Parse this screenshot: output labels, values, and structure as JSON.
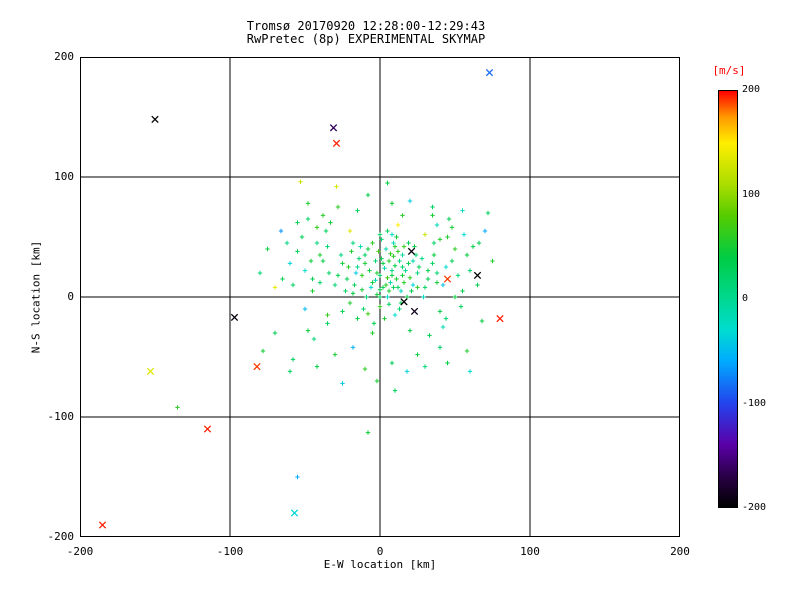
{
  "chart_data": {
    "type": "scatter",
    "title_line1": "Tromsø 20170920 12:28:00-12:29:43",
    "title_line2": "RwPretec (8p) EXPERIMENTAL SKYMAP",
    "xlabel": "E-W location [km]",
    "ylabel": "N-S location [km]",
    "xlim": [
      -200,
      200
    ],
    "ylim": [
      -200,
      200
    ],
    "xticks": [
      -200,
      -100,
      0,
      100,
      200
    ],
    "yticks": [
      -200,
      -100,
      0,
      100,
      200
    ],
    "grid": true,
    "background": "#ffffff",
    "axis_color": "#000000",
    "colorbar": {
      "label": "[m/s]",
      "label_color": "#ff0000",
      "min": -200,
      "max": 200,
      "ticks": [
        200,
        100,
        0,
        -100,
        -200
      ]
    },
    "colormap": [
      {
        "v": -200,
        "c": "#000000"
      },
      {
        "v": -170,
        "c": "#2a0048"
      },
      {
        "v": -140,
        "c": "#5a00a8"
      },
      {
        "v": -100,
        "c": "#2244ee"
      },
      {
        "v": -60,
        "c": "#00aaff"
      },
      {
        "v": -30,
        "c": "#00dcd0"
      },
      {
        "v": 0,
        "c": "#00d890"
      },
      {
        "v": 40,
        "c": "#00cc44"
      },
      {
        "v": 80,
        "c": "#55cc00"
      },
      {
        "v": 110,
        "c": "#aadd00"
      },
      {
        "v": 150,
        "c": "#ffee00"
      },
      {
        "v": 175,
        "c": "#ff9900"
      },
      {
        "v": 200,
        "c": "#ff0000"
      }
    ],
    "points_columns": [
      "x_km",
      "y_km",
      "velocity_mps"
    ],
    "plus_points": [
      [
        2,
        8,
        35
      ],
      [
        -5,
        12,
        48
      ],
      [
        8,
        22,
        10
      ],
      [
        14,
        5,
        -22
      ],
      [
        -12,
        18,
        62
      ],
      [
        6,
        -6,
        28
      ],
      [
        -3,
        30,
        15
      ],
      [
        11,
        15,
        52
      ],
      [
        -18,
        3,
        40
      ],
      [
        4,
        40,
        -15
      ],
      [
        19,
        28,
        33
      ],
      [
        -8,
        -14,
        70
      ],
      [
        0,
        18,
        22
      ],
      [
        9,
        34,
        58
      ],
      [
        -15,
        25,
        5
      ],
      [
        22,
        10,
        -35
      ],
      [
        -2,
        2,
        45
      ],
      [
        13,
        -10,
        18
      ],
      [
        -22,
        15,
        30
      ],
      [
        7,
        12,
        -8
      ],
      [
        16,
        42,
        65
      ],
      [
        -10,
        35,
        25
      ],
      [
        3,
        -18,
        50
      ],
      [
        25,
        20,
        12
      ],
      [
        -6,
        8,
        -28
      ],
      [
        10,
        26,
        38
      ],
      [
        -20,
        -5,
        55
      ],
      [
        1,
        48,
        20
      ],
      [
        18,
        0,
        42
      ],
      [
        -13,
        42,
        -12
      ],
      [
        5,
        16,
        68
      ],
      [
        28,
        32,
        8
      ],
      [
        -4,
        -22,
        35
      ],
      [
        12,
        8,
        26
      ],
      [
        -25,
        28,
        48
      ],
      [
        8,
        52,
        -20
      ],
      [
        20,
        16,
        60
      ],
      [
        -9,
        0,
        15
      ],
      [
        2,
        28,
        44
      ],
      [
        15,
        35,
        -5
      ],
      [
        -17,
        10,
        32
      ],
      [
        6,
        5,
        52
      ],
      [
        30,
        8,
        24
      ],
      [
        -1,
        38,
        70
      ],
      [
        10,
        -15,
        -30
      ],
      [
        23,
        42,
        40
      ],
      [
        -14,
        32,
        18
      ],
      [
        4,
        10,
        58
      ],
      [
        17,
        22,
        5
      ],
      [
        -28,
        18,
        36
      ],
      [
        9,
        45,
        -18
      ],
      [
        0,
        -8,
        62
      ],
      [
        26,
        25,
        28
      ],
      [
        -7,
        22,
        45
      ],
      [
        13,
        30,
        12
      ],
      [
        -19,
        38,
        55
      ],
      [
        5,
        0,
        -25
      ],
      [
        21,
        5,
        38
      ],
      [
        -11,
        -10,
        20
      ],
      [
        7,
        36,
        65
      ],
      [
        32,
        15,
        30
      ],
      [
        -3,
        14,
        -10
      ],
      [
        11,
        50,
        48
      ],
      [
        -23,
        5,
        25
      ],
      [
        16,
        12,
        56
      ],
      [
        1,
        32,
        35
      ],
      [
        -16,
        20,
        -40
      ],
      [
        24,
        35,
        14
      ],
      [
        -5,
        45,
        60
      ],
      [
        8,
        18,
        42
      ],
      [
        35,
        28,
        22
      ],
      [
        -12,
        6,
        50
      ],
      [
        3,
        24,
        -15
      ],
      [
        19,
        45,
        32
      ],
      [
        -26,
        35,
        8
      ],
      [
        6,
        30,
        55
      ],
      [
        14,
        -5,
        28
      ],
      [
        -8,
        40,
        45
      ],
      [
        29,
        0,
        -22
      ],
      [
        0,
        6,
        38
      ],
      [
        -30,
        10,
        18
      ],
      [
        12,
        38,
        62
      ],
      [
        5,
        55,
        26
      ],
      [
        -15,
        -18,
        40
      ],
      [
        22,
        30,
        -12
      ],
      [
        -2,
        20,
        52
      ],
      [
        9,
        8,
        30
      ],
      [
        38,
        20,
        15
      ],
      [
        -21,
        25,
        58
      ],
      [
        15,
        18,
        44
      ],
      [
        -38,
        30,
        35
      ],
      [
        42,
        10,
        -45
      ],
      [
        -45,
        5,
        50
      ],
      [
        36,
        45,
        20
      ],
      [
        -35,
        -15,
        65
      ],
      [
        48,
        30,
        30
      ],
      [
        -42,
        45,
        10
      ],
      [
        40,
        -12,
        40
      ],
      [
        -50,
        22,
        -25
      ],
      [
        45,
        50,
        55
      ],
      [
        -36,
        55,
        28
      ],
      [
        52,
        18,
        15
      ],
      [
        -48,
        -28,
        45
      ],
      [
        38,
        60,
        -18
      ],
      [
        -55,
        38,
        32
      ],
      [
        50,
        40,
        60
      ],
      [
        -40,
        12,
        22
      ],
      [
        55,
        5,
        38
      ],
      [
        -33,
        62,
        48
      ],
      [
        44,
        25,
        -30
      ],
      [
        -58,
        10,
        25
      ],
      [
        35,
        68,
        52
      ],
      [
        -44,
        -35,
        12
      ],
      [
        58,
        35,
        42
      ],
      [
        -52,
        50,
        30
      ],
      [
        42,
        -25,
        -15
      ],
      [
        -38,
        68,
        58
      ],
      [
        60,
        22,
        20
      ],
      [
        -46,
        30,
        46
      ],
      [
        33,
        -32,
        34
      ],
      [
        -60,
        28,
        -35
      ],
      [
        48,
        58,
        50
      ],
      [
        -35,
        42,
        16
      ],
      [
        54,
        -8,
        28
      ],
      [
        -42,
        58,
        62
      ],
      [
        36,
        35,
        44
      ],
      [
        -62,
        45,
        8
      ],
      [
        46,
        65,
        30
      ],
      [
        -50,
        -10,
        -50
      ],
      [
        40,
        48,
        56
      ],
      [
        -34,
        20,
        24
      ],
      [
        62,
        42,
        40
      ],
      [
        -55,
        62,
        35
      ],
      [
        44,
        -18,
        18
      ],
      [
        -40,
        35,
        52
      ],
      [
        56,
        52,
        -28
      ],
      [
        -65,
        15,
        30
      ],
      [
        38,
        12,
        48
      ],
      [
        -48,
        65,
        22
      ],
      [
        65,
        10,
        36
      ],
      [
        -75,
        40,
        45
      ],
      [
        70,
        55,
        -60
      ],
      [
        -70,
        -30,
        30
      ],
      [
        75,
        30,
        55
      ],
      [
        -80,
        20,
        15
      ],
      [
        68,
        -20,
        40
      ],
      [
        -66,
        55,
        -70
      ],
      [
        72,
        70,
        25
      ],
      [
        -78,
        -45,
        50
      ],
      [
        66,
        45,
        35
      ],
      [
        -28,
        75,
        60
      ],
      [
        20,
        80,
        -40
      ],
      [
        -15,
        72,
        30
      ],
      [
        8,
        78,
        48
      ],
      [
        35,
        75,
        20
      ],
      [
        -48,
        78,
        55
      ],
      [
        55,
        72,
        -25
      ],
      [
        -8,
        85,
        38
      ],
      [
        15,
        68,
        58
      ],
      [
        -58,
        -52,
        28
      ],
      [
        25,
        -48,
        45
      ],
      [
        -18,
        -42,
        -55
      ],
      [
        8,
        -55,
        32
      ],
      [
        -30,
        -48,
        50
      ],
      [
        40,
        -42,
        22
      ],
      [
        -10,
        -60,
        60
      ],
      [
        18,
        -62,
        -35
      ],
      [
        -42,
        -58,
        42
      ],
      [
        30,
        -58,
        15
      ],
      [
        -2,
        -70,
        52
      ],
      [
        10,
        -78,
        30
      ],
      [
        -25,
        -72,
        -45
      ],
      [
        45,
        -55,
        38
      ],
      [
        -60,
        -62,
        25
      ],
      [
        58,
        -45,
        55
      ],
      [
        -29,
        92,
        130
      ],
      [
        5,
        95,
        40
      ],
      [
        -135,
        -92,
        60
      ],
      [
        60,
        -62,
        -30
      ],
      [
        -8,
        -113,
        45
      ],
      [
        -55,
        -150,
        -60
      ],
      [
        -70,
        8,
        140
      ],
      [
        12,
        60,
        150
      ],
      [
        -20,
        55,
        135
      ],
      [
        30,
        52,
        125
      ],
      [
        0,
        0,
        30
      ],
      [
        -5,
        -30,
        55
      ],
      [
        20,
        -28,
        40
      ],
      [
        -35,
        -22,
        25
      ],
      [
        50,
        0,
        45
      ],
      [
        -25,
        -12,
        35
      ],
      [
        15,
        25,
        20
      ],
      [
        -10,
        28,
        50
      ],
      [
        25,
        8,
        60
      ],
      [
        -18,
        45,
        15
      ],
      [
        32,
        22,
        42
      ],
      [
        -45,
        15,
        30
      ],
      [
        10,
        42,
        55
      ],
      [
        0,
        52,
        25
      ],
      [
        -53,
        96,
        125
      ]
    ],
    "x_points": [
      [
        73,
        187,
        -85
      ],
      [
        -150,
        148,
        -200
      ],
      [
        -31,
        141,
        -165
      ],
      [
        -29,
        128,
        195
      ],
      [
        -153,
        -62,
        135
      ],
      [
        -115,
        -110,
        195
      ],
      [
        -185,
        -190,
        195
      ],
      [
        -57,
        -180,
        -35
      ],
      [
        -82,
        -58,
        190
      ],
      [
        -97,
        -17,
        -195
      ],
      [
        80,
        -18,
        195
      ],
      [
        65,
        18,
        -200
      ],
      [
        45,
        15,
        190
      ],
      [
        21,
        38,
        -195
      ],
      [
        16,
        -4,
        -200
      ],
      [
        23,
        -12,
        -190
      ]
    ]
  }
}
